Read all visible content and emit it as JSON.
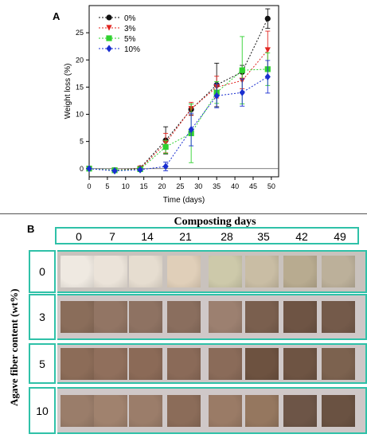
{
  "panel_a_label": "A",
  "panel_b_label": "B",
  "chart_data": {
    "type": "line",
    "xlabel": "Time (days)",
    "ylabel": "Weight loss (%)",
    "xlim": [
      0,
      52
    ],
    "ylim": [
      -1.5,
      30
    ],
    "xticks": [
      0,
      5,
      10,
      15,
      20,
      25,
      30,
      35,
      40,
      45,
      50
    ],
    "yticks": [
      0,
      5,
      10,
      15,
      20,
      25
    ],
    "legend_position": "top-left",
    "x": [
      0,
      7,
      14,
      21,
      28,
      35,
      42,
      49
    ],
    "series": [
      {
        "name": "0%",
        "color": "#111111",
        "marker": "circle",
        "values": [
          0,
          -0.3,
          0.1,
          5.2,
          10.9,
          15.4,
          17.8,
          27.6
        ],
        "errors": [
          0,
          0,
          0.2,
          2.5,
          1.0,
          4.0,
          1.2,
          1.8
        ]
      },
      {
        "name": "3%",
        "color": "#e0241f",
        "marker": "triangle-down",
        "values": [
          0,
          -0.3,
          0.0,
          4.7,
          11.0,
          15.0,
          16.2,
          21.8
        ],
        "errors": [
          0,
          0,
          0.2,
          1.8,
          1.2,
          2.0,
          1.5,
          3.5
        ]
      },
      {
        "name": "5%",
        "color": "#2fd12f",
        "marker": "square",
        "values": [
          0,
          -0.3,
          -0.1,
          4.0,
          6.5,
          14.0,
          18.1,
          18.3
        ],
        "errors": [
          0,
          0,
          0.2,
          1.2,
          5.4,
          2.0,
          6.2,
          3.0
        ]
      },
      {
        "name": "10%",
        "color": "#1a2fd0",
        "marker": "diamond",
        "values": [
          0,
          -0.4,
          -0.2,
          0.4,
          7.2,
          13.4,
          14.0,
          16.9
        ],
        "errors": [
          0,
          0,
          0.2,
          0.8,
          3.0,
          2.2,
          2.5,
          3.0
        ]
      }
    ]
  },
  "photo_grid": {
    "title": "Composting days",
    "y_title": "Agave fiber content (wt%)",
    "days": [
      "0",
      "7",
      "14",
      "21",
      "28",
      "35",
      "42",
      "49"
    ],
    "rows": [
      {
        "label": "0",
        "colors": [
          "#efe9e1",
          "#ebe3d9",
          "#e6ddd0",
          "#e0cfb9",
          "#cdc9aa",
          "#c9bda4",
          "#b8ab90",
          "#bcb09a"
        ]
      },
      {
        "label": "3",
        "colors": [
          "#8a6d5a",
          "#927564",
          "#8e7262",
          "#8a6e5e",
          "#9c8070",
          "#7a5f4e",
          "#6e5444",
          "#745a4a"
        ]
      },
      {
        "label": "5",
        "colors": [
          "#8c6c58",
          "#906f5c",
          "#8b6a57",
          "#8a6a58",
          "#8a6b59",
          "#6d5240",
          "#6e5443",
          "#7c624f"
        ]
      },
      {
        "label": "10",
        "colors": [
          "#9a7d6a",
          "#a0826e",
          "#9b7d6a",
          "#8b6c59",
          "#9a7b66",
          "#95775f",
          "#6d5547",
          "#6a5242"
        ]
      }
    ]
  }
}
